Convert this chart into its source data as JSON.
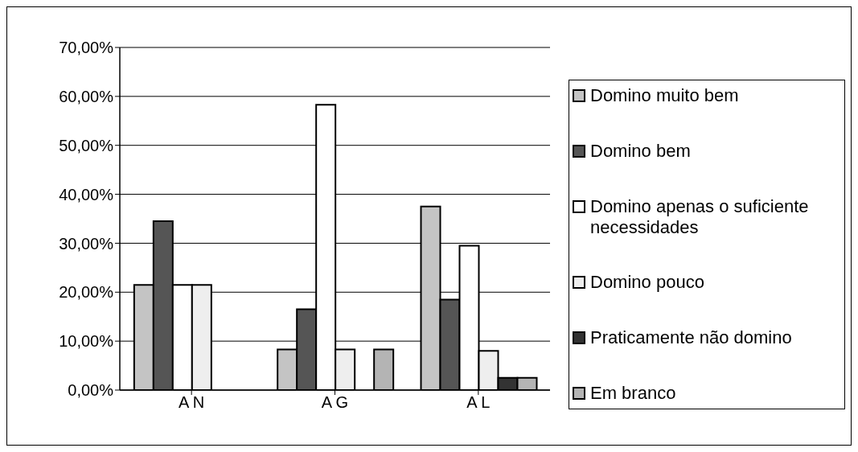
{
  "chart_data": {
    "type": "bar",
    "categories": [
      "A N",
      "A G",
      "A L"
    ],
    "series": [
      {
        "name": "Domino muito bem",
        "color": "#c4c4c4",
        "values": [
          21.5,
          8.3,
          37.5
        ]
      },
      {
        "name": "Domino bem",
        "color": "#555555",
        "values": [
          34.5,
          16.5,
          18.5
        ]
      },
      {
        "name": "Domino apenas o suficiente necessidades",
        "color": "#ffffff",
        "values": [
          21.5,
          58.3,
          29.5
        ]
      },
      {
        "name": "Domino pouco",
        "color": "#eeeeee",
        "values": [
          21.5,
          8.3,
          8
        ]
      },
      {
        "name": "Praticamente não domino",
        "color": "#333333",
        "values": [
          0,
          0,
          2.5
        ]
      },
      {
        "name": "Em branco",
        "color": "#b4b4b4",
        "values": [
          0,
          8.3,
          2.5
        ]
      }
    ],
    "ylim": [
      0,
      70
    ],
    "yticks": [
      {
        "value": 0,
        "label": "0,00%"
      },
      {
        "value": 10,
        "label": "10,00%"
      },
      {
        "value": 20,
        "label": "20,00%"
      },
      {
        "value": 30,
        "label": "30,00%"
      },
      {
        "value": 40,
        "label": "40,00%"
      },
      {
        "value": 50,
        "label": "50,00%"
      },
      {
        "value": 60,
        "label": "60,00%"
      },
      {
        "value": 70,
        "label": "70,00%"
      }
    ],
    "grid": "y",
    "legend": "right"
  }
}
